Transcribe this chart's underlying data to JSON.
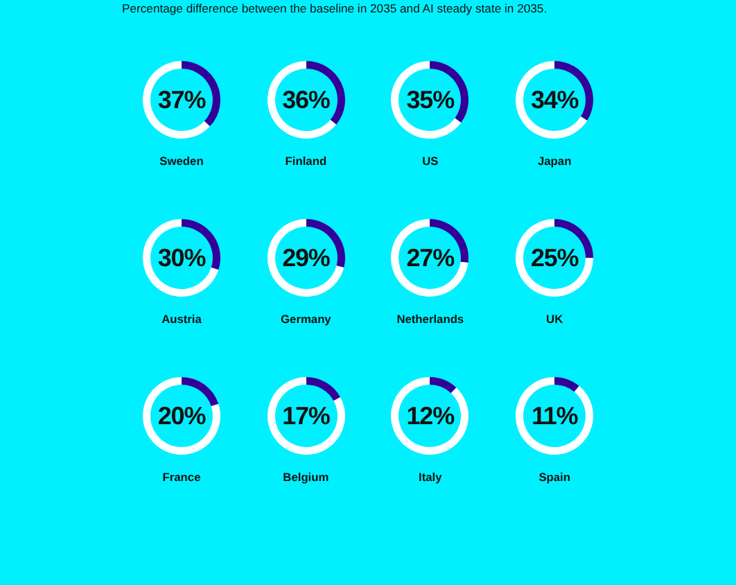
{
  "chart_data": [
    {
      "type": "donut",
      "subtitle": "Percentage difference between the baseline in 2035 and AI steady state in 2035.",
      "title": "Sweden",
      "categories": [
        null,
        null
      ],
      "values": [
        37,
        63
      ],
      "colors": [
        "#35009a",
        "#ffffff"
      ],
      "annotations": [
        "37%"
      ]
    },
    {
      "type": "donut",
      "title": "Finland",
      "categories": [
        null,
        null
      ],
      "values": [
        36,
        64
      ],
      "colors": [
        "#35009a",
        "#ffffff"
      ],
      "annotations": [
        "36%"
      ]
    },
    {
      "type": "donut",
      "title": "US",
      "categories": [
        null,
        null
      ],
      "values": [
        35,
        65
      ],
      "colors": [
        "#35009a",
        "#ffffff"
      ],
      "annotations": [
        "35%"
      ]
    },
    {
      "type": "donut",
      "title": "Japan",
      "categories": [
        null,
        null
      ],
      "values": [
        34,
        66
      ],
      "colors": [
        "#35009a",
        "#ffffff"
      ],
      "annotations": [
        "34%"
      ]
    },
    {
      "type": "donut",
      "title": "Austria",
      "categories": [
        null,
        null
      ],
      "values": [
        30,
        70
      ],
      "colors": [
        "#35009a",
        "#ffffff"
      ],
      "annotations": [
        "30%"
      ]
    },
    {
      "type": "donut",
      "title": "Germany",
      "categories": [
        null,
        null
      ],
      "values": [
        29,
        71
      ],
      "colors": [
        "#35009a",
        "#ffffff"
      ],
      "annotations": [
        "29%"
      ]
    },
    {
      "type": "donut",
      "title": "Netherlands",
      "categories": [
        null,
        null
      ],
      "values": [
        27,
        73
      ],
      "colors": [
        "#35009a",
        "#ffffff"
      ],
      "annotations": [
        "27%"
      ]
    },
    {
      "type": "donut",
      "title": "UK",
      "categories": [
        null,
        null
      ],
      "values": [
        25,
        75
      ],
      "colors": [
        "#35009a",
        "#ffffff"
      ],
      "annotations": [
        "25%"
      ]
    },
    {
      "type": "donut",
      "title": "France",
      "categories": [
        null,
        null
      ],
      "values": [
        20,
        80
      ],
      "colors": [
        "#35009a",
        "#ffffff"
      ],
      "annotations": [
        "20%"
      ]
    },
    {
      "type": "donut",
      "title": "Belgium",
      "categories": [
        null,
        null
      ],
      "values": [
        17,
        83
      ],
      "colors": [
        "#35009a",
        "#ffffff"
      ],
      "annotations": [
        "17%"
      ]
    },
    {
      "type": "donut",
      "title": "Italy",
      "categories": [
        null,
        null
      ],
      "values": [
        12,
        88
      ],
      "colors": [
        "#35009a",
        "#ffffff"
      ],
      "annotations": [
        "12%"
      ]
    },
    {
      "type": "donut",
      "title": "Spain",
      "categories": [
        null,
        null
      ],
      "values": [
        11,
        89
      ],
      "colors": [
        "#35009a",
        "#ffffff"
      ],
      "annotations": [
        "11%"
      ]
    }
  ]
}
